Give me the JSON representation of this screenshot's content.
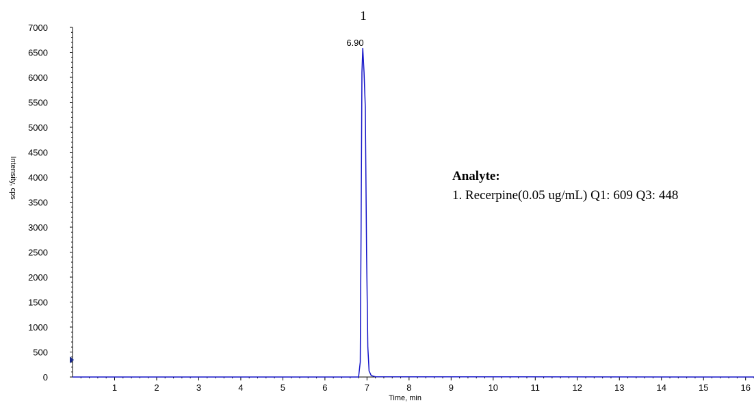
{
  "chart_data": {
    "type": "line",
    "title": "",
    "xlabel": "Time, min",
    "ylabel": "Intensity, cps",
    "xlim": [
      0,
      16.2
    ],
    "ylim": [
      0,
      7000
    ],
    "x_ticks": [
      "1",
      "2",
      "3",
      "4",
      "5",
      "6",
      "7",
      "8",
      "9",
      "10",
      "11",
      "12",
      "13",
      "14",
      "15",
      "16"
    ],
    "y_ticks": [
      "0",
      "500",
      "1000",
      "1500",
      "2000",
      "2500",
      "3000",
      "3500",
      "4000",
      "4500",
      "5000",
      "5500",
      "6000",
      "6500",
      "7000"
    ],
    "series": [
      {
        "color": "#1414c8",
        "x": [
          0,
          6.5,
          6.8,
          6.84,
          6.86,
          6.88,
          6.9,
          6.93,
          6.96,
          6.99,
          7.02,
          7.05,
          7.1,
          7.2,
          16.2
        ],
        "y": [
          0,
          0,
          0,
          300,
          3000,
          6100,
          6580,
          6100,
          5400,
          2500,
          600,
          120,
          30,
          5,
          0
        ]
      }
    ],
    "annotations": {
      "peak_time": "6.90",
      "peak_id": "1"
    }
  },
  "legend": {
    "heading": "Analyte:",
    "entry": "1. Recerpine(0.05 ug/mL) Q1: 609 Q3: 448"
  }
}
